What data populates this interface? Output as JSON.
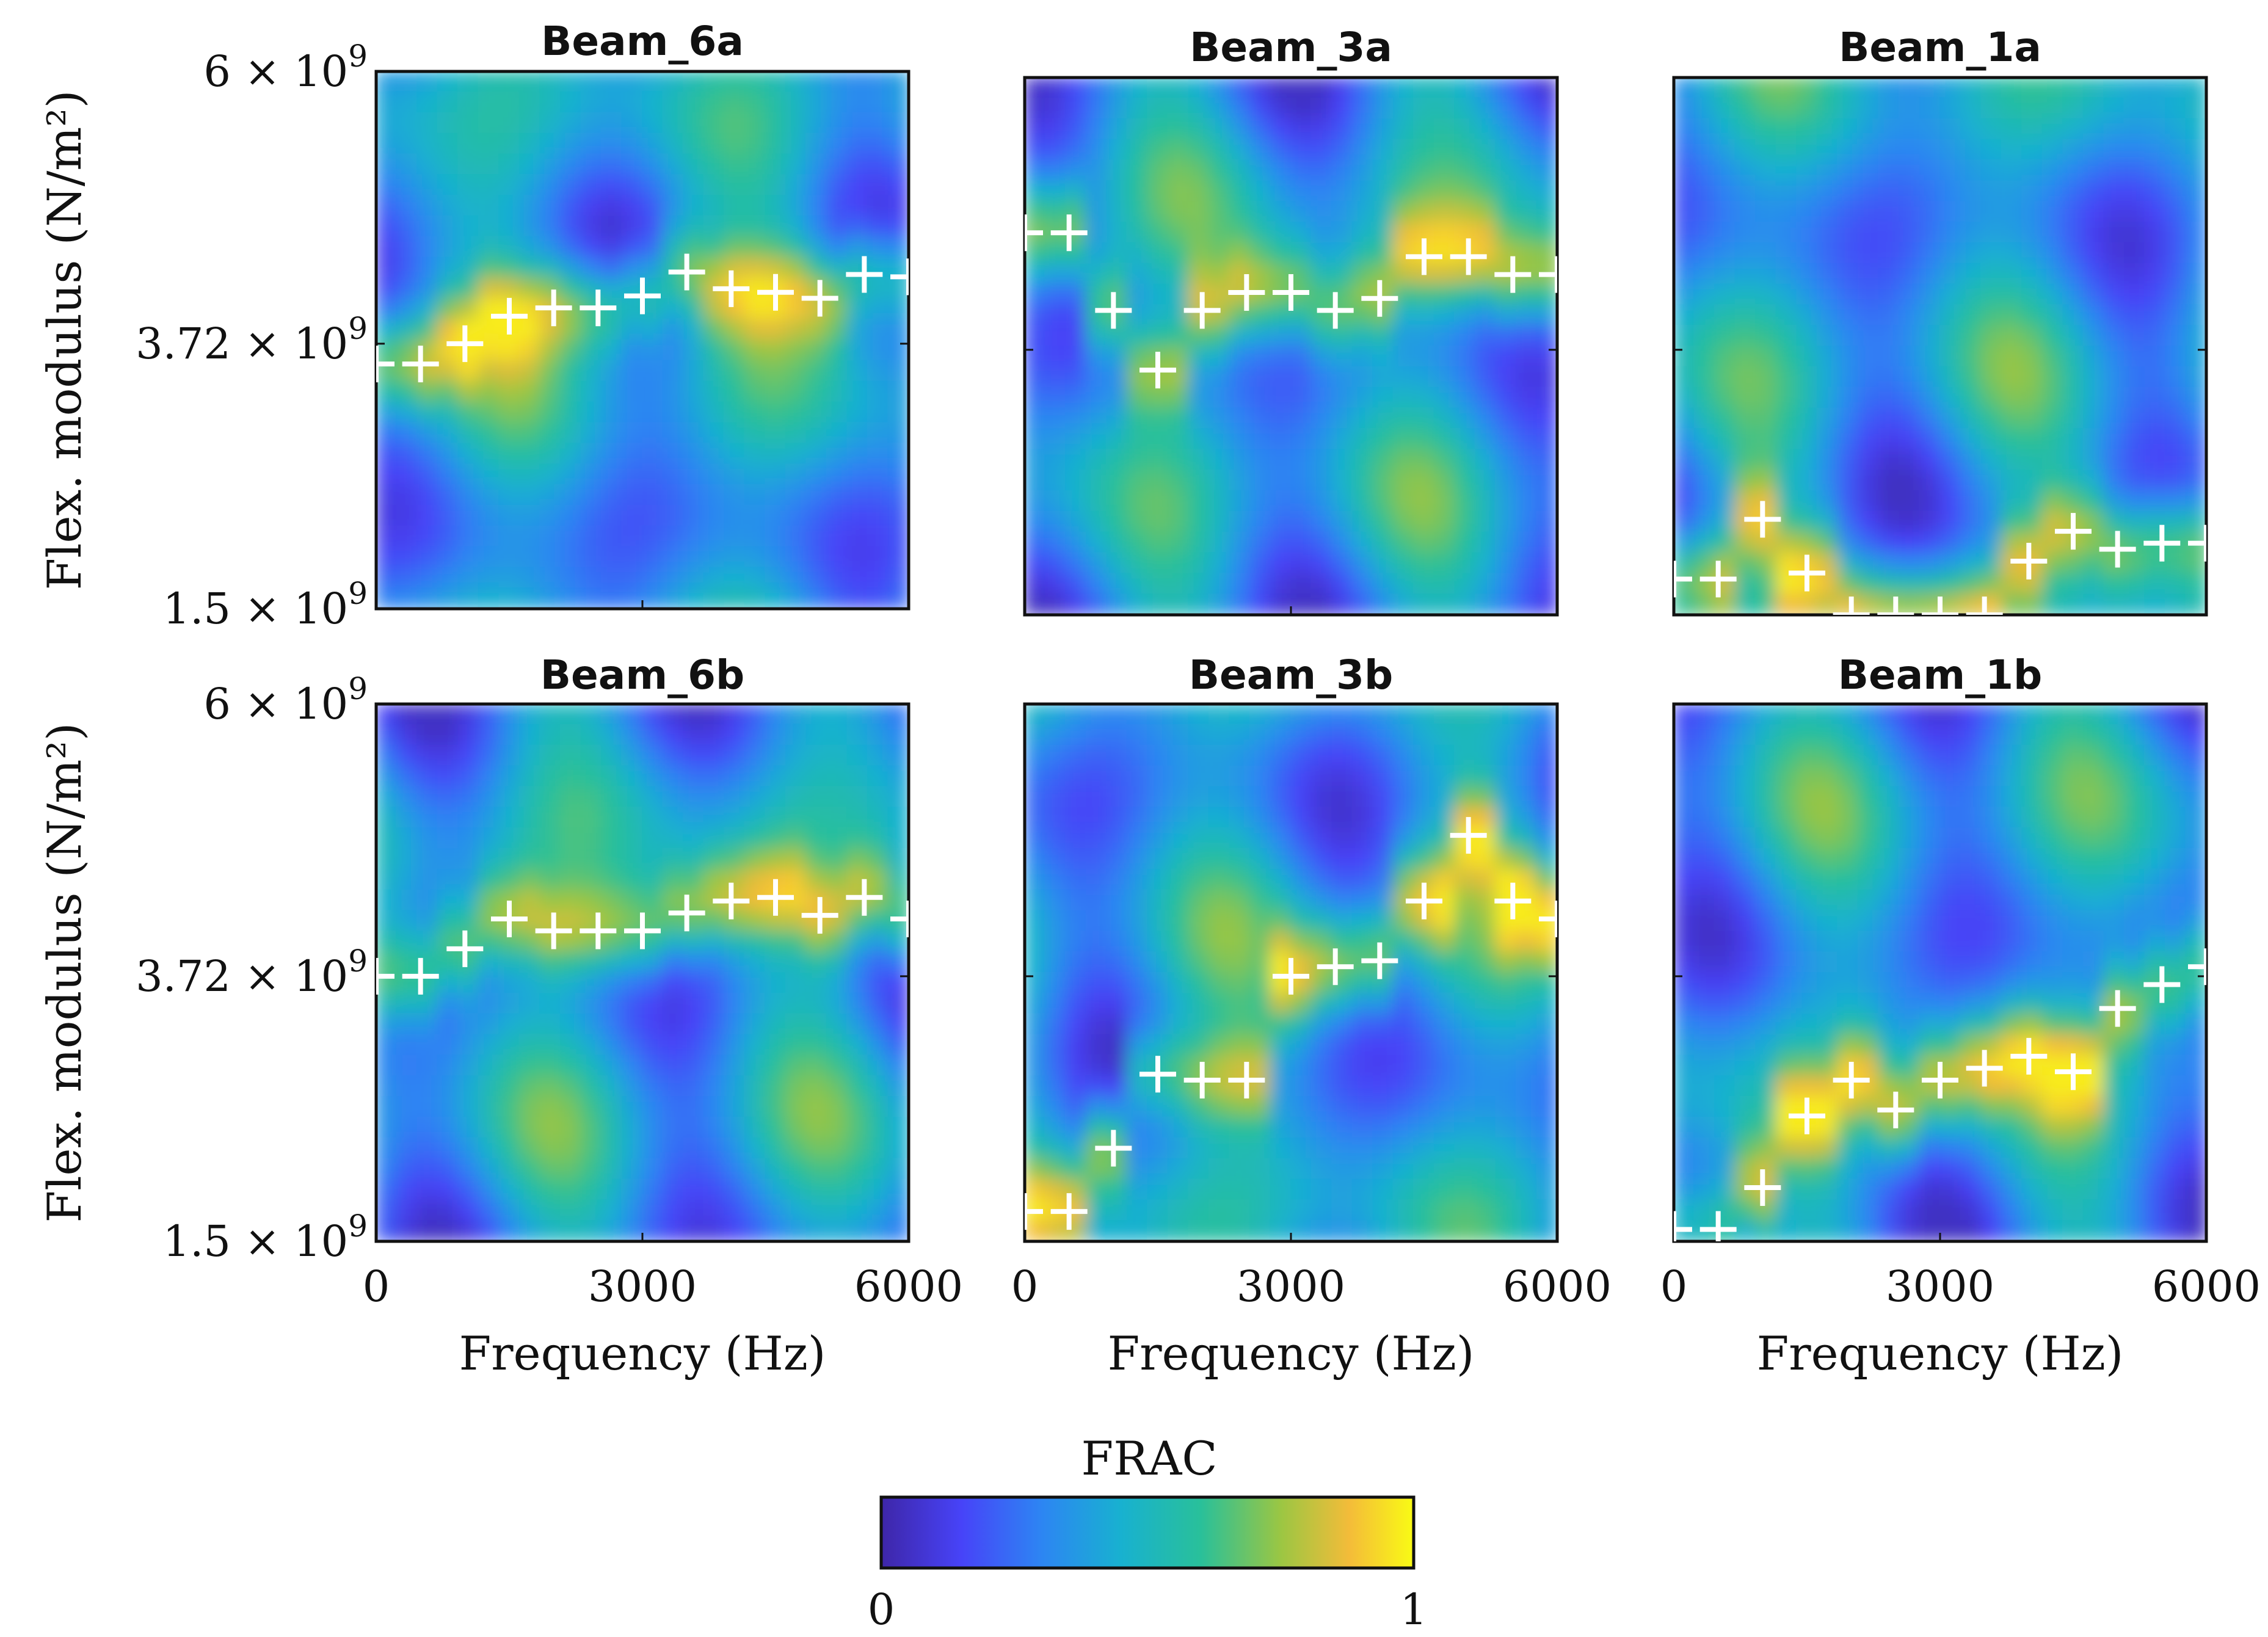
{
  "chart_data": {
    "type": "heatmap",
    "figure_title": "",
    "colorbar": {
      "label": "FRAC",
      "range": [
        0,
        1
      ],
      "tick_labels": [
        "0",
        "1"
      ],
      "colormap": "parula"
    },
    "shared_axes": {
      "x_label": "Frequency (Hz)",
      "x_range": [
        0,
        6000
      ],
      "x_tick_values": [
        0,
        3000,
        6000
      ],
      "x_tick_labels": [
        "0",
        "3000",
        "6000"
      ],
      "y_label": "Flex. modulus (N/m²)",
      "y_range": [
        1500000000,
        6000000000
      ],
      "y_tick_values": [
        1500000000,
        3720000000,
        6000000000
      ],
      "y_tick_labels": [
        {
          "mant": "1.5",
          "exp": "9"
        },
        {
          "mant": "3.72",
          "exp": "9"
        },
        {
          "mant": "6",
          "exp": "9"
        }
      ],
      "times_sign": "×",
      "base": "10"
    },
    "panels": [
      {
        "title": "Beam_6a",
        "row": 0,
        "col": 0,
        "seed": 11,
        "best_fit_frequency_hz": [
          0,
          500,
          1000,
          1500,
          2000,
          2500,
          3000,
          3500,
          4000,
          4500,
          5000,
          5500,
          6000
        ],
        "best_fit_modulus": [
          3550000000.0,
          3550000000.0,
          3720000000.0,
          3950000000.0,
          4020000000.0,
          4020000000.0,
          4120000000.0,
          4320000000.0,
          4180000000.0,
          4150000000.0,
          4100000000.0,
          4300000000.0,
          4280000000.0
        ]
      },
      {
        "title": "Beam_3a",
        "row": 0,
        "col": 1,
        "seed": 23,
        "best_fit_frequency_hz": [
          0,
          500,
          1000,
          1500,
          2000,
          2500,
          3000,
          3500,
          4000,
          4500,
          5000,
          5500,
          6000
        ],
        "best_fit_modulus": [
          4700000000.0,
          4700000000.0,
          4050000000.0,
          3550000000.0,
          4050000000.0,
          4200000000.0,
          4200000000.0,
          4050000000.0,
          4150000000.0,
          4500000000.0,
          4500000000.0,
          4350000000.0,
          4350000000.0
        ]
      },
      {
        "title": "Beam_1a",
        "row": 0,
        "col": 2,
        "seed": 37,
        "best_fit_frequency_hz": [
          0,
          500,
          1000,
          1500,
          2000,
          2500,
          3000,
          3500,
          4000,
          4500,
          5000,
          5500,
          6000
        ],
        "best_fit_modulus": [
          1800000000.0,
          1800000000.0,
          2300000000.0,
          1850000000.0,
          1500000000.0,
          1500000000.0,
          1500000000.0,
          1500000000.0,
          1950000000.0,
          2200000000.0,
          2050000000.0,
          2100000000.0,
          2100000000.0
        ]
      },
      {
        "title": "Beam_6b",
        "row": 1,
        "col": 0,
        "seed": 41,
        "best_fit_frequency_hz": [
          0,
          500,
          1000,
          1500,
          2000,
          2500,
          3000,
          3500,
          4000,
          4500,
          5000,
          5500,
          6000
        ],
        "best_fit_modulus": [
          3720000000.0,
          3720000000.0,
          3950000000.0,
          4200000000.0,
          4100000000.0,
          4100000000.0,
          4100000000.0,
          4250000000.0,
          4350000000.0,
          4380000000.0,
          4230000000.0,
          4380000000.0,
          4200000000.0
        ]
      },
      {
        "title": "Beam_3b",
        "row": 1,
        "col": 1,
        "seed": 53,
        "best_fit_frequency_hz": [
          0,
          500,
          1000,
          1500,
          2000,
          2500,
          3000,
          3500,
          4000,
          4500,
          5000,
          5500,
          6000
        ],
        "best_fit_modulus": [
          1750000000.0,
          1750000000.0,
          2280000000.0,
          2900000000.0,
          2850000000.0,
          2850000000.0,
          3720000000.0,
          3800000000.0,
          3850000000.0,
          4350000000.0,
          4900000000.0,
          4350000000.0,
          4200000000.0
        ]
      },
      {
        "title": "Beam_1b",
        "row": 1,
        "col": 2,
        "seed": 67,
        "best_fit_frequency_hz": [
          0,
          500,
          1000,
          1500,
          2000,
          2500,
          3000,
          3500,
          4000,
          4500,
          5000,
          5500,
          6000
        ],
        "best_fit_modulus": [
          1600000000.0,
          1600000000.0,
          1950000000.0,
          2550000000.0,
          2850000000.0,
          2600000000.0,
          2850000000.0,
          2950000000.0,
          3050000000.0,
          2920000000.0,
          3450000000.0,
          3650000000.0,
          3800000000.0
        ]
      }
    ]
  }
}
